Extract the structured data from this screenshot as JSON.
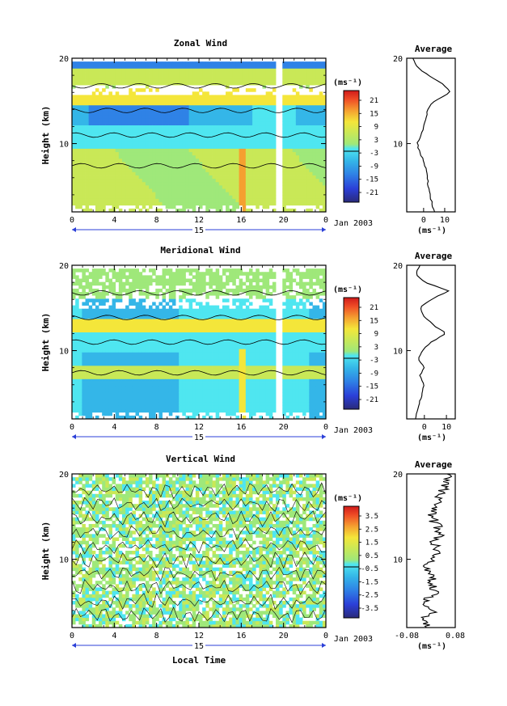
{
  "figure": {
    "xlabel": "Local Time",
    "day_label": "15",
    "date_label": "Jan 2003",
    "unit": "(ms⁻¹)"
  },
  "chart_data": [
    {
      "type": "heatmap",
      "title": "Zonal Wind",
      "ylabel": "Height (km)",
      "xlabel": "",
      "x_ticks": [
        "0",
        "4",
        "8",
        "12",
        "16",
        "20",
        "0"
      ],
      "y_ticks": [
        "10",
        "20"
      ],
      "xlim": [
        0,
        24
      ],
      "ylim": [
        2,
        20
      ],
      "colorbar": {
        "ticks": [
          "21",
          "15",
          "9",
          "3",
          "-3",
          "-9",
          "-15",
          "-21"
        ],
        "range": [
          -24,
          24
        ]
      },
      "profile": {
        "title": "Average",
        "xlabel": "(ms⁻¹)",
        "x_ticks": [
          "0",
          "10"
        ],
        "xlim": [
          -8,
          15
        ],
        "y_ticks": [
          "10",
          "20"
        ],
        "heights": [
          2,
          3,
          4,
          5,
          6,
          7,
          8,
          9,
          10,
          11,
          12,
          13,
          14,
          15,
          16,
          17,
          18,
          19,
          20
        ],
        "values": [
          5,
          4,
          3,
          2,
          2,
          1,
          0,
          -2,
          -3,
          -1,
          0,
          1,
          2,
          5,
          13,
          9,
          2,
          -3,
          -5
        ]
      }
    },
    {
      "type": "heatmap",
      "title": "Meridional Wind",
      "ylabel": "Height (km)",
      "xlabel": "",
      "x_ticks": [
        "0",
        "4",
        "8",
        "12",
        "16",
        "20",
        "0"
      ],
      "y_ticks": [
        "10",
        "20"
      ],
      "xlim": [
        0,
        24
      ],
      "ylim": [
        2,
        20
      ],
      "colorbar": {
        "ticks": [
          "21",
          "15",
          "9",
          "3",
          "-3",
          "-9",
          "-15",
          "-21"
        ],
        "range": [
          -24,
          24
        ]
      },
      "profile": {
        "title": "Average",
        "xlabel": "(ms⁻¹)",
        "x_ticks": [
          "0",
          "10"
        ],
        "xlim": [
          -8,
          14
        ],
        "y_ticks": [
          "10",
          "20"
        ],
        "heights": [
          2,
          3,
          4,
          5,
          6,
          7,
          8,
          9,
          10,
          11,
          12,
          13,
          14,
          15,
          16,
          17,
          18,
          19,
          20
        ],
        "values": [
          -4,
          -3,
          -2,
          -1,
          0,
          -2,
          0,
          -3,
          -1,
          3,
          10,
          4,
          0,
          -2,
          3,
          11,
          0,
          -4,
          -2
        ]
      }
    },
    {
      "type": "heatmap",
      "title": "Vertical Wind",
      "ylabel": "Height (km)",
      "xlabel": "Local Time",
      "x_ticks": [
        "0",
        "4",
        "8",
        "12",
        "16",
        "20",
        "0"
      ],
      "y_ticks": [
        "10",
        "20"
      ],
      "xlim": [
        0,
        24
      ],
      "ylim": [
        2,
        20
      ],
      "colorbar": {
        "ticks": [
          "3.5",
          "2.5",
          "1.5",
          "0.5",
          "-0.5",
          "-1.5",
          "-2.5",
          "-3.5"
        ],
        "range": [
          -4,
          4
        ]
      },
      "profile": {
        "title": "Average",
        "xlabel": "(ms⁻¹)",
        "x_ticks": [
          "-0.08",
          "0.08"
        ],
        "xlim": [
          -0.08,
          0.08
        ],
        "y_ticks": [
          "10",
          "20"
        ],
        "heights": [
          2,
          3,
          4,
          5,
          6,
          7,
          8,
          9,
          10,
          11,
          12,
          13,
          14,
          15,
          16,
          17,
          18,
          19,
          20
        ],
        "values": [
          0.0,
          -0.02,
          0.01,
          -0.03,
          0.02,
          0.0,
          0.01,
          -0.02,
          0.0,
          0.02,
          0.01,
          0.03,
          0.02,
          0.0,
          0.01,
          0.02,
          0.04,
          0.05,
          0.06
        ]
      }
    }
  ]
}
